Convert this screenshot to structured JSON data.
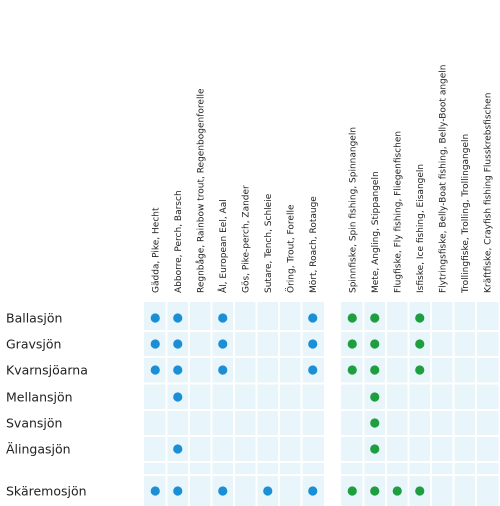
{
  "colors": {
    "cell_background": "#e8f5fa",
    "fish_dot": "#1a8fd6",
    "method_dot": "#1e9e3e"
  },
  "fish_columns": [
    "Gädda, Pike, Hecht",
    "Abborre, Perch, Barsch",
    "Regnbåge, Rainbow trout, Regenbogenforelle",
    "Ål, European Eel, Aal",
    "Gös, Pike-perch, Zander",
    "Sutare, Tench, Schleie",
    "Öring, Trout, Forelle",
    "Mört, Roach, Rotauge"
  ],
  "method_columns": [
    "Spinnfiske, Spin fishing, Spinnangeln",
    "Mete, Angling, Stippangeln",
    "Flugfiske, Fly fishing, Fliegenfischen",
    "Isfiske, Ice fishing, Eisangeln",
    "Flytringsfiske, Belly-Boat fishing, Belly-Boot angeln",
    "Trollingfiske, Trolling, Trollingangeln",
    "Kräftfiske, Crayfish fishing Flusskrebsfischen"
  ],
  "lakes": [
    {
      "name": "Ballasjön",
      "fish": [
        1,
        1,
        0,
        1,
        0,
        0,
        0,
        1
      ],
      "methods": [
        1,
        1,
        0,
        1,
        0,
        0,
        0
      ]
    },
    {
      "name": "Gravsjön",
      "fish": [
        1,
        1,
        0,
        1,
        0,
        0,
        0,
        1
      ],
      "methods": [
        1,
        1,
        0,
        1,
        0,
        0,
        0
      ]
    },
    {
      "name": "Kvarnsjöarna",
      "fish": [
        1,
        1,
        0,
        1,
        0,
        0,
        0,
        1
      ],
      "methods": [
        1,
        1,
        0,
        1,
        0,
        0,
        0
      ]
    },
    {
      "name": "Mellansjön",
      "fish": [
        0,
        1,
        0,
        0,
        0,
        0,
        0,
        0
      ],
      "methods": [
        0,
        1,
        0,
        0,
        0,
        0,
        0
      ]
    },
    {
      "name": "Svansjön",
      "fish": [
        0,
        0,
        0,
        0,
        0,
        0,
        0,
        0
      ],
      "methods": [
        0,
        1,
        0,
        0,
        0,
        0,
        0
      ]
    },
    {
      "name": "Älingasjön",
      "fish": [
        0,
        1,
        0,
        0,
        0,
        0,
        0,
        0
      ],
      "methods": [
        0,
        1,
        0,
        0,
        0,
        0,
        0
      ]
    },
    {
      "name": "Skäremosjön",
      "fish": [
        1,
        1,
        0,
        1,
        0,
        1,
        0,
        1
      ],
      "methods": [
        1,
        1,
        1,
        1,
        0,
        0,
        0
      ]
    }
  ]
}
